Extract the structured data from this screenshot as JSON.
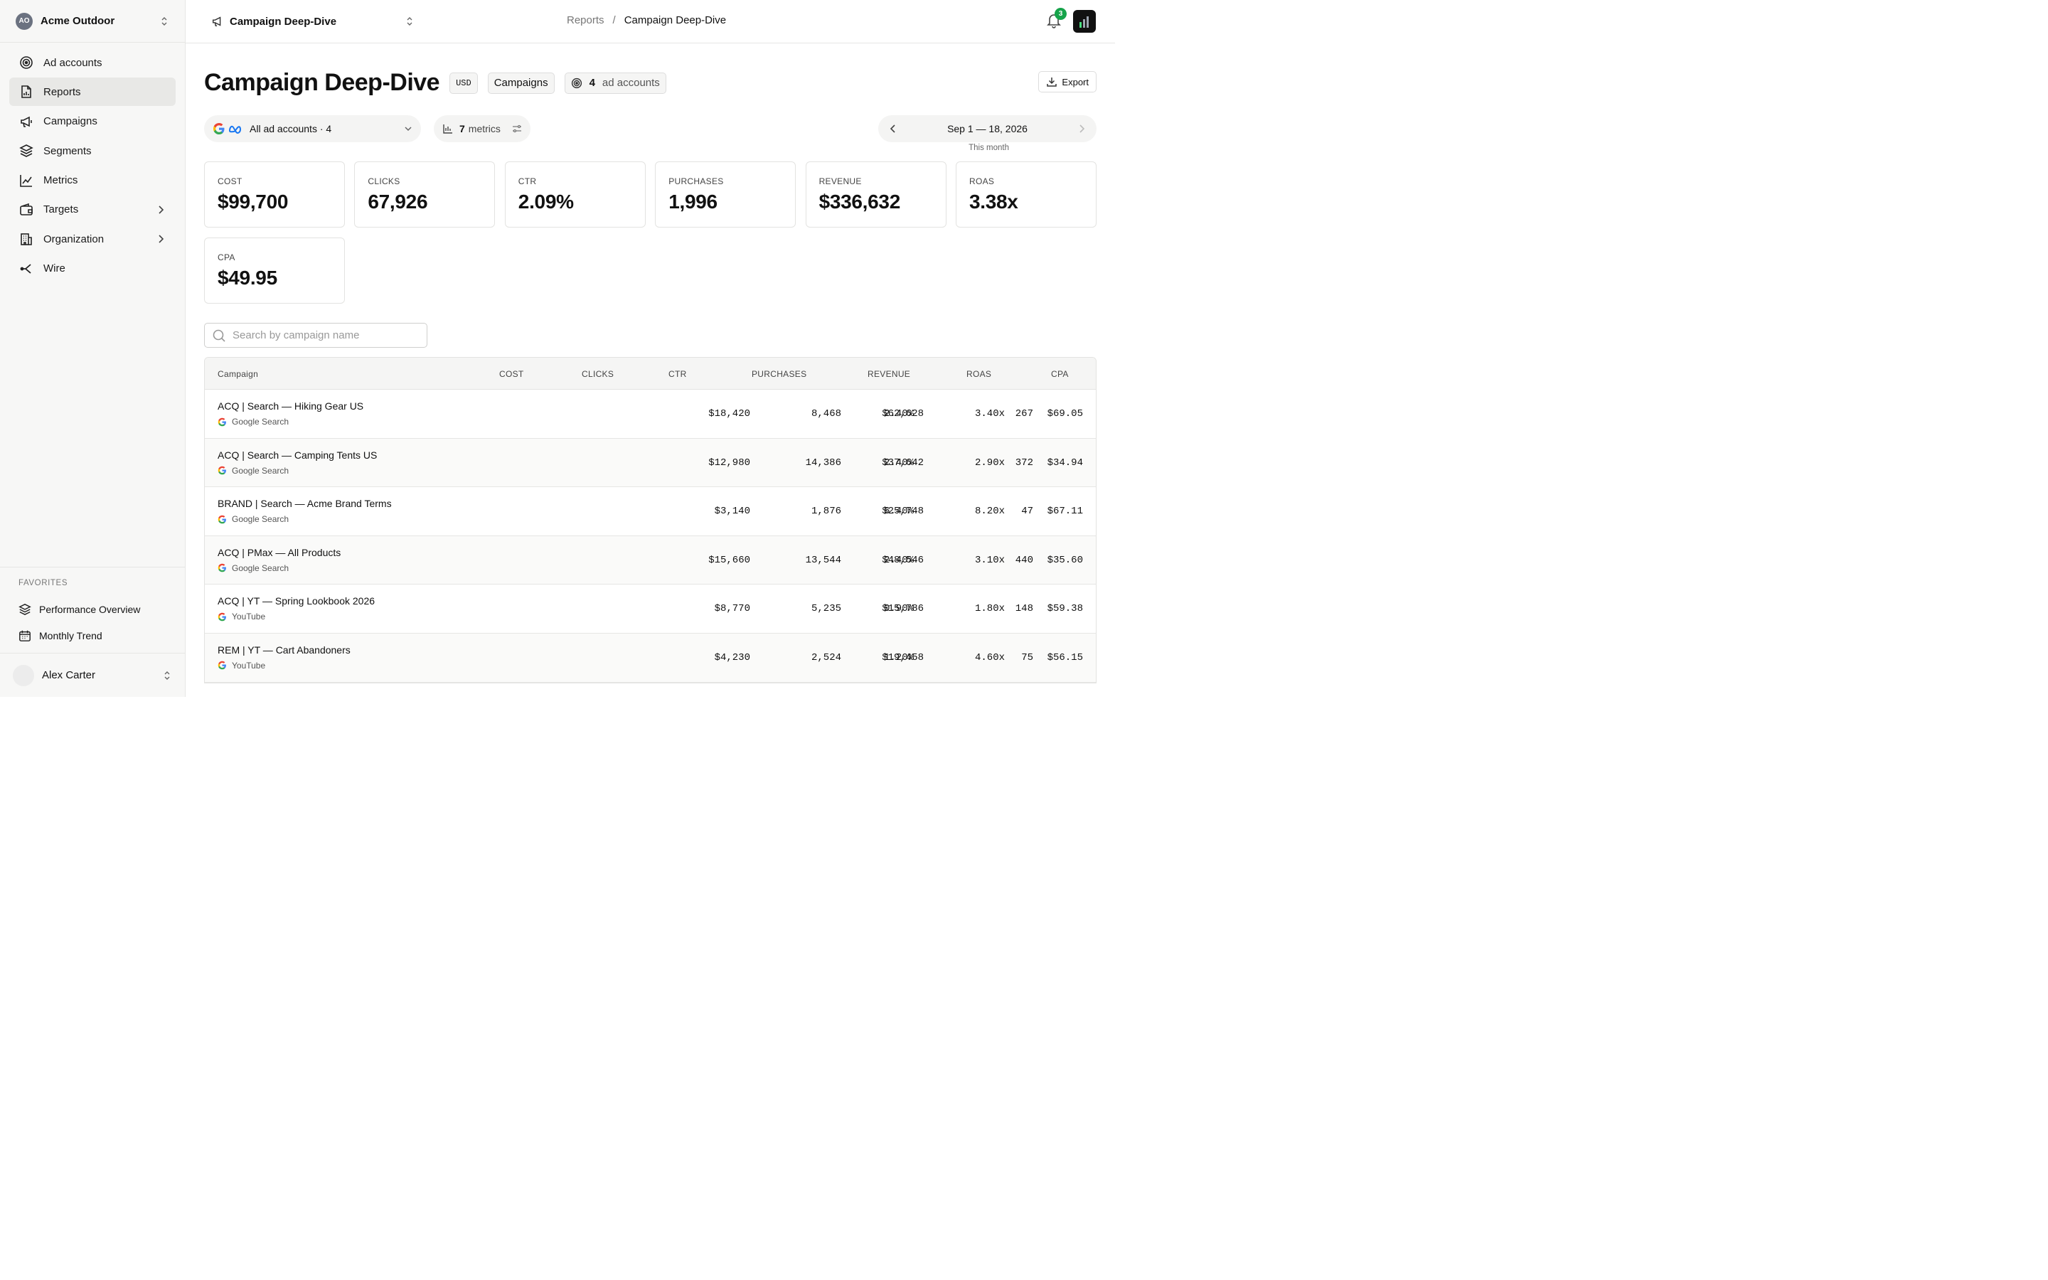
{
  "sidebar": {
    "org": {
      "initials": "AO",
      "name": "Acme Outdoor"
    },
    "nav": [
      {
        "label": "Ad accounts",
        "icon": "target-icon"
      },
      {
        "label": "Reports",
        "icon": "report-icon",
        "active": true
      },
      {
        "label": "Campaigns",
        "icon": "megaphone-icon"
      },
      {
        "label": "Segments",
        "icon": "layers-icon"
      },
      {
        "label": "Metrics",
        "icon": "line-chart-icon"
      },
      {
        "label": "Targets",
        "icon": "wallet-icon",
        "chevron": true
      },
      {
        "label": "Organization",
        "icon": "building-icon",
        "chevron": true
      },
      {
        "label": "Wire",
        "icon": "share-icon"
      }
    ],
    "favorites_title": "FAVORITES",
    "favorites": [
      {
        "label": "Performance Overview",
        "icon": "layers-icon"
      },
      {
        "label": "Monthly Trend",
        "icon": "calendar-icon"
      }
    ],
    "user": {
      "name": "Alex Carter"
    }
  },
  "topbar": {
    "report_name": "Campaign Deep-Dive",
    "breadcrumb": [
      "Reports",
      "/",
      "Campaign Deep-Dive"
    ],
    "notifications": "3"
  },
  "header": {
    "title": "Campaign Deep-Dive",
    "currency": "USD",
    "level": "Campaigns",
    "accounts_count": "4",
    "accounts_label": "ad accounts",
    "export_label": "Export"
  },
  "filters": {
    "accounts": "All ad accounts · 4",
    "metrics_count": "7",
    "metrics_label": "metrics",
    "date_range": "Sep 1 — 18, 2026",
    "date_sub": "This month"
  },
  "kpis": [
    {
      "label": "COST",
      "value": "$99,700"
    },
    {
      "label": "CLICKS",
      "value": "67,926"
    },
    {
      "label": "CTR",
      "value": "2.09%"
    },
    {
      "label": "PURCHASES",
      "value": "1,996"
    },
    {
      "label": "REVENUE",
      "value": "$336,632"
    },
    {
      "label": "ROAS",
      "value": "3.38x"
    },
    {
      "label": "CPA",
      "value": "$49.95"
    }
  ],
  "search": {
    "placeholder": "Search by campaign name"
  },
  "table": {
    "columns": [
      "Campaign",
      "COST",
      "CLICKS",
      "CTR",
      "PURCHASES",
      "REVENUE",
      "ROAS",
      "CPA"
    ],
    "rows": [
      {
        "name": "ACQ | Search — Hiking Gear US",
        "source": "Google Search",
        "cells": [
          "$18,420",
          "8,468",
          "2.40%",
          "267",
          "$62,628",
          "3.40x",
          "$69.05"
        ]
      },
      {
        "name": "ACQ | Search — Camping Tents US",
        "source": "Google Search",
        "cells": [
          "$12,980",
          "14,386",
          "2.40%",
          "372",
          "$37,642",
          "2.90x",
          "$34.94"
        ]
      },
      {
        "name": "BRAND | Search — Acme Brand Terms",
        "source": "Google Search",
        "cells": [
          "$3,140",
          "1,876",
          "6.40%",
          "47",
          "$25,748",
          "8.20x",
          "$67.11"
        ]
      },
      {
        "name": "ACQ | PMax — All Products",
        "source": "Google Search",
        "cells": [
          "$15,660",
          "13,544",
          "2.40%",
          "440",
          "$48,546",
          "3.10x",
          "$35.60"
        ]
      },
      {
        "name": "ACQ | YT — Spring Lookbook 2026",
        "source": "YouTube",
        "cells": [
          "$8,770",
          "5,235",
          "0.90%",
          "148",
          "$15,786",
          "1.80x",
          "$59.38"
        ]
      },
      {
        "name": "REM | YT — Cart Abandoners",
        "source": "YouTube",
        "cells": [
          "$4,230",
          "2,524",
          "1.20%",
          "75",
          "$19,458",
          "4.60x",
          "$56.15"
        ]
      }
    ]
  }
}
